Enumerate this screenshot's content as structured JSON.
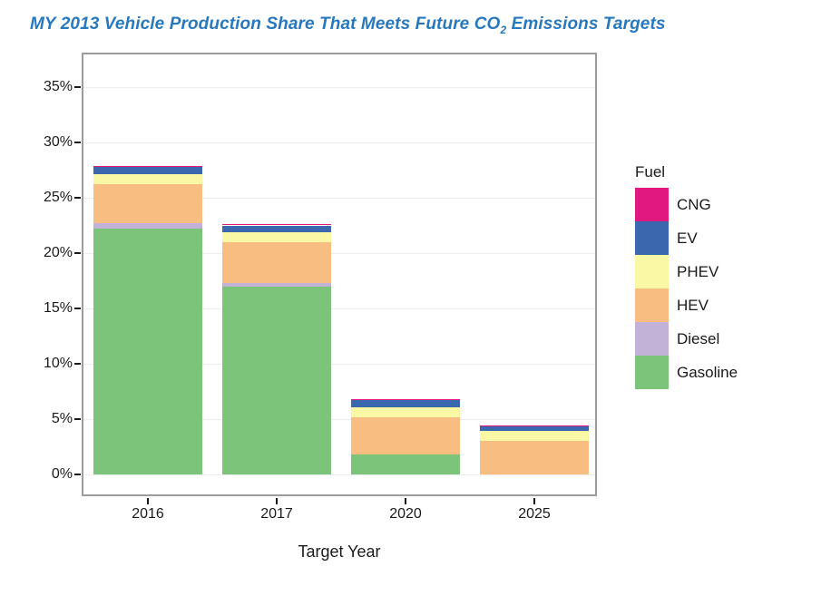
{
  "title": {
    "part1": "MY 2013 Vehicle Production Share That Meets Future CO",
    "subscript": "2",
    "part2": " Emissions Targets"
  },
  "chart_data": {
    "type": "bar",
    "stacked": true,
    "categories": [
      "2016",
      "2017",
      "2020",
      "2025"
    ],
    "series": [
      {
        "name": "Gasoline",
        "color": "#7DC47B",
        "values": [
          22.2,
          17.0,
          1.8,
          0
        ]
      },
      {
        "name": "Diesel",
        "color": "#C2B2D8",
        "values": [
          0.5,
          0.3,
          0,
          0
        ]
      },
      {
        "name": "HEV",
        "color": "#F8BD80",
        "values": [
          3.5,
          3.7,
          3.4,
          3.0
        ]
      },
      {
        "name": "PHEV",
        "color": "#FAF8A5",
        "values": [
          0.9,
          0.9,
          0.9,
          0.9
        ]
      },
      {
        "name": "EV",
        "color": "#3A67AD",
        "values": [
          0.7,
          0.6,
          0.6,
          0.5
        ]
      },
      {
        "name": "CNG",
        "color": "#E0187F",
        "values": [
          0.1,
          0.1,
          0.1,
          0.05
        ]
      }
    ],
    "totals": [
      27.9,
      22.6,
      6.8,
      4.45
    ],
    "xlabel": "Target Year",
    "ylabel": "",
    "y_tick_values": [
      0,
      5,
      10,
      15,
      20,
      25,
      30,
      35
    ],
    "y_tick_labels": [
      "0%",
      "5%",
      "10%",
      "15%",
      "20%",
      "25%",
      "30%",
      "35%"
    ],
    "ylim": [
      0,
      37.5
    ],
    "grid": "horizontal-only",
    "legend": {
      "title": "Fuel",
      "position": "right",
      "order": [
        "CNG",
        "EV",
        "PHEV",
        "HEV",
        "Diesel",
        "Gasoline"
      ]
    }
  },
  "colors": {
    "title_text": "#2878BE",
    "plot_border": "#9C9C9C",
    "gridline": "#EDEDED",
    "axis_text": "#1A1A1A"
  }
}
